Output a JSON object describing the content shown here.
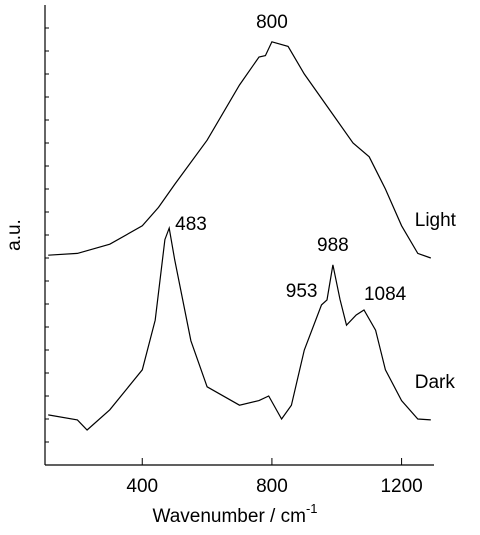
{
  "chart_data": {
    "type": "line",
    "x_label": "Wavenumber / cm",
    "x_label_sup": "-1",
    "y_label": "a.u.",
    "xlim": [
      100,
      1300
    ],
    "xticks": [
      400,
      800,
      1200
    ],
    "ylim": [
      0,
      100
    ],
    "series": [
      {
        "name": "Light",
        "color": "#000000",
        "peak_labels": [
          "800"
        ],
        "x": [
          110,
          200,
          300,
          400,
          450,
          500,
          600,
          700,
          760,
          780,
          800,
          850,
          900,
          1000,
          1050,
          1100,
          1150,
          1200,
          1250,
          1290
        ],
        "values": [
          45.6,
          46,
          48,
          52,
          56,
          61,
          70.6,
          82.6,
          88.7,
          89,
          92,
          91,
          85,
          75,
          70,
          67,
          60,
          52,
          46,
          45
        ]
      },
      {
        "name": "Dark",
        "color": "#000000",
        "peak_labels": [
          "483",
          "953",
          "988",
          "1084"
        ],
        "x": [
          110,
          200,
          230,
          300,
          400,
          440,
          470,
          483,
          500,
          550,
          600,
          700,
          760,
          790,
          830,
          860,
          900,
          953,
          970,
          988,
          1010,
          1030,
          1060,
          1084,
          1120,
          1150,
          1200,
          1250,
          1290
        ],
        "values": [
          10.9,
          9.8,
          7.6,
          12,
          20.7,
          31.5,
          49,
          51.5,
          44.6,
          27,
          17,
          13,
          14,
          15,
          10,
          13,
          25,
          34.8,
          35.9,
          43.5,
          36,
          30.4,
          32.6,
          33.7,
          29.3,
          20.7,
          14,
          10,
          9.8
        ]
      }
    ]
  }
}
